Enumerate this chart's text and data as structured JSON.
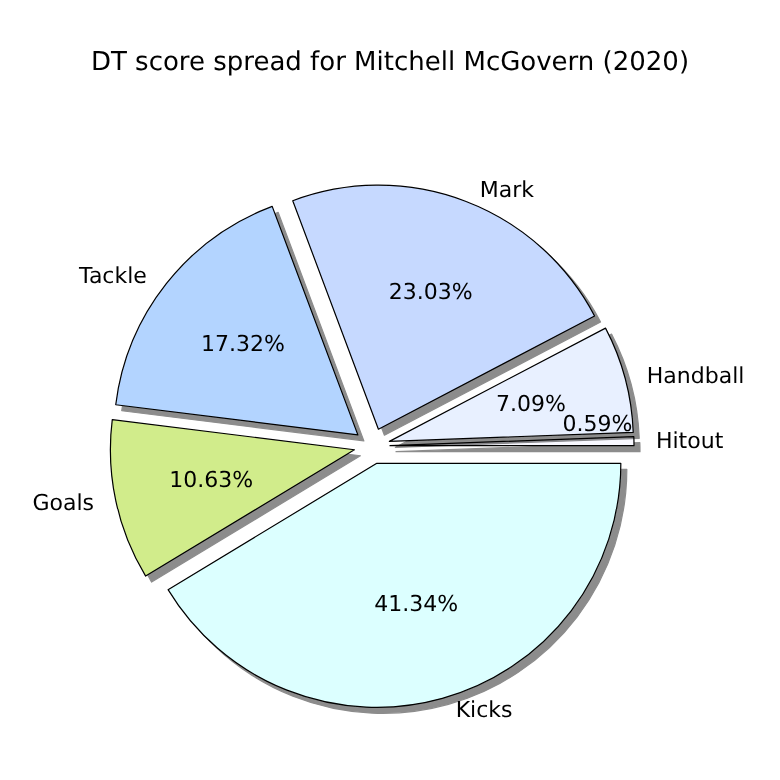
{
  "chart_data": {
    "type": "pie",
    "title": "DT score spread for Mitchell McGovern (2020)",
    "categories": [
      "Hitout",
      "Handball",
      "Mark",
      "Tackle",
      "Goals",
      "Kicks"
    ],
    "values": [
      0.59,
      7.09,
      23.03,
      17.32,
      10.63,
      41.34
    ],
    "value_labels": [
      "0.59%",
      "7.09%",
      "23.03%",
      "17.32%",
      "10.63%",
      "41.34%"
    ],
    "colors": [
      "#f8f8ff",
      "#e8f0ff",
      "#c6d9ff",
      "#b3d4ff",
      "#d1ec8b",
      "#dcffff"
    ],
    "legend": false
  }
}
